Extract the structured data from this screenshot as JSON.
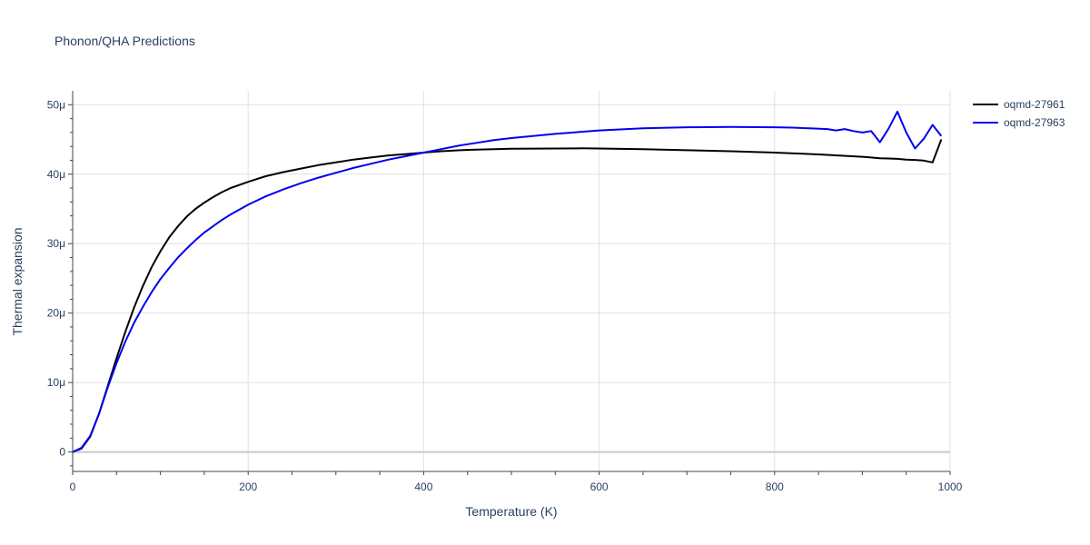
{
  "chart_data": {
    "type": "line",
    "title": "Phonon/QHA Predictions",
    "xlabel": "Temperature (K)",
    "ylabel": "Thermal expansion",
    "xlim": [
      0,
      1000
    ],
    "ylim": [
      -2.8,
      52
    ],
    "grid": true,
    "legend_placement": "top-right",
    "x_ticks": [
      {
        "value": 0,
        "label": "0"
      },
      {
        "value": 200,
        "label": "200"
      },
      {
        "value": 400,
        "label": "400"
      },
      {
        "value": 600,
        "label": "600"
      },
      {
        "value": 800,
        "label": "800"
      },
      {
        "value": 1000,
        "label": "1000"
      }
    ],
    "y_ticks": [
      {
        "value": 0,
        "label": "0"
      },
      {
        "value": 10,
        "label": "10μ"
      },
      {
        "value": 20,
        "label": "20μ"
      },
      {
        "value": 30,
        "label": "30μ"
      },
      {
        "value": 40,
        "label": "40μ"
      },
      {
        "value": 50,
        "label": "50μ"
      }
    ],
    "series": [
      {
        "name": "oqmd-27961",
        "color": "#000000",
        "x": [
          0,
          10,
          20,
          30,
          40,
          50,
          60,
          70,
          80,
          90,
          100,
          110,
          120,
          130,
          140,
          150,
          160,
          170,
          180,
          200,
          220,
          240,
          260,
          280,
          300,
          320,
          340,
          360,
          380,
          400,
          420,
          450,
          500,
          550,
          580,
          600,
          650,
          700,
          750,
          800,
          850,
          900,
          910,
          920,
          930,
          940,
          950,
          960,
          970,
          980,
          990
        ],
        "y": [
          0,
          0.5,
          2.2,
          5.5,
          9.5,
          13.5,
          17.3,
          20.8,
          23.9,
          26.6,
          28.9,
          30.9,
          32.5,
          33.9,
          35.0,
          35.9,
          36.7,
          37.4,
          38.0,
          38.9,
          39.7,
          40.3,
          40.8,
          41.3,
          41.7,
          42.1,
          42.4,
          42.7,
          42.9,
          43.1,
          43.3,
          43.5,
          43.65,
          43.7,
          43.72,
          43.7,
          43.6,
          43.45,
          43.3,
          43.1,
          42.85,
          42.5,
          42.4,
          42.3,
          42.25,
          42.2,
          42.1,
          42.05,
          41.95,
          41.7,
          45.0
        ]
      },
      {
        "name": "oqmd-27963",
        "color": "#0000ee",
        "x": [
          0,
          10,
          20,
          30,
          40,
          50,
          60,
          70,
          80,
          90,
          100,
          110,
          120,
          130,
          140,
          150,
          160,
          170,
          180,
          200,
          220,
          240,
          260,
          280,
          300,
          320,
          340,
          360,
          380,
          400,
          420,
          440,
          460,
          480,
          500,
          550,
          600,
          650,
          700,
          750,
          800,
          820,
          840,
          860,
          870,
          880,
          890,
          900,
          910,
          920,
          930,
          940,
          950,
          960,
          970,
          980,
          990
        ],
        "y": [
          0,
          0.6,
          2.3,
          5.5,
          9.3,
          12.8,
          15.9,
          18.6,
          20.9,
          23.0,
          24.9,
          26.5,
          28.0,
          29.3,
          30.5,
          31.6,
          32.5,
          33.4,
          34.2,
          35.6,
          36.8,
          37.8,
          38.7,
          39.5,
          40.2,
          40.9,
          41.5,
          42.1,
          42.6,
          43.1,
          43.6,
          44.1,
          44.5,
          44.9,
          45.2,
          45.8,
          46.3,
          46.6,
          46.75,
          46.8,
          46.75,
          46.7,
          46.6,
          46.5,
          46.3,
          46.5,
          46.2,
          46.0,
          46.2,
          44.6,
          46.6,
          49.0,
          46.0,
          43.7,
          45.1,
          47.1,
          45.5
        ]
      }
    ]
  }
}
